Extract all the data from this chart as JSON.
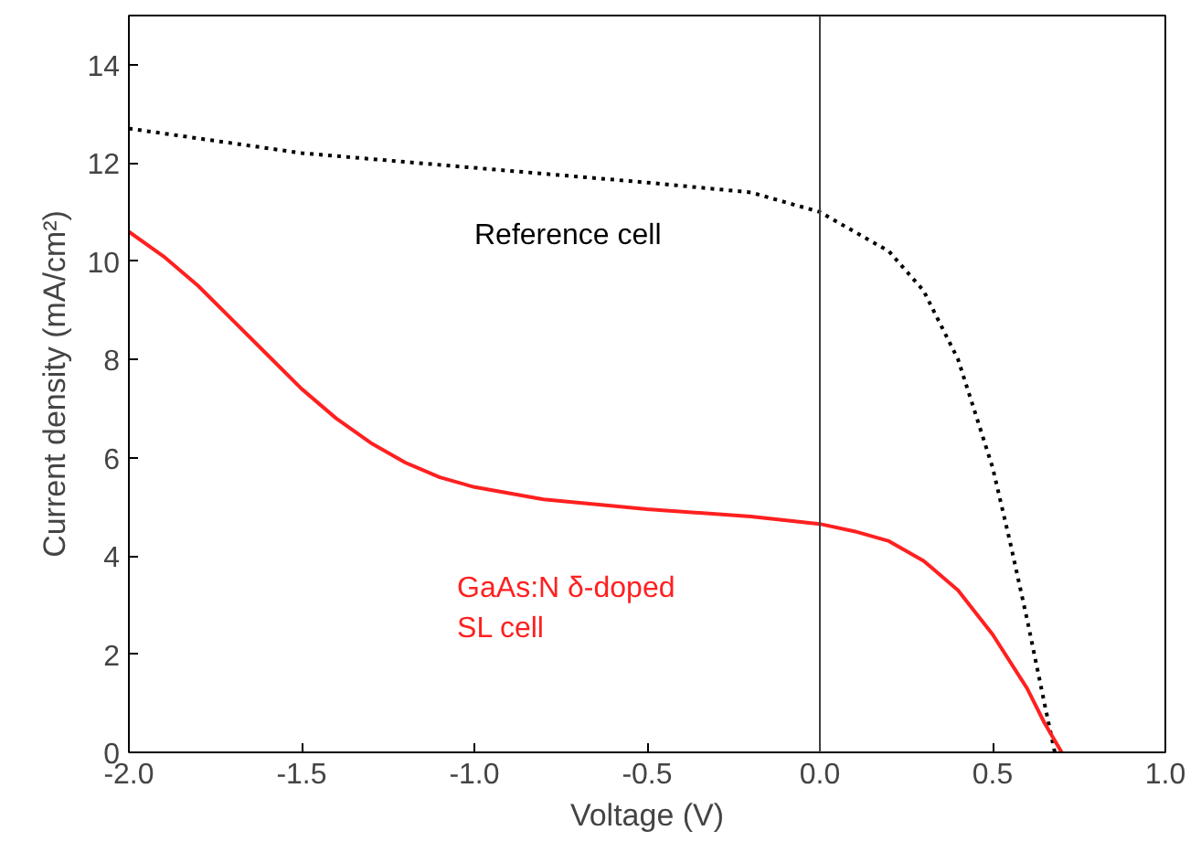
{
  "chart_data": {
    "type": "line",
    "xlabel": "Voltage (V)",
    "ylabel": "Current density (mA/cm²)",
    "xlim": [
      -2.0,
      1.0
    ],
    "ylim": [
      0,
      15
    ],
    "xticks": [
      {
        "value": -2.0,
        "label": "-2.0"
      },
      {
        "value": -1.5,
        "label": "-1.5"
      },
      {
        "value": -1.0,
        "label": "-1.0"
      },
      {
        "value": -0.5,
        "label": "-0.5"
      },
      {
        "value": 0.0,
        "label": "0.0"
      },
      {
        "value": 0.5,
        "label": "0.5"
      },
      {
        "value": 1.0,
        "label": "1.0"
      }
    ],
    "yticks": [
      0,
      2,
      4,
      6,
      8,
      10,
      12,
      14
    ],
    "grid": false,
    "ref_lines": [
      {
        "axis": "x",
        "value": 0,
        "color": "#404040"
      }
    ],
    "series": [
      {
        "name": "Reference cell",
        "color": "#000000",
        "line_style": "dotted",
        "x": [
          -2.0,
          -1.5,
          -1.0,
          -0.5,
          -0.2,
          0.0,
          0.2,
          0.3,
          0.4,
          0.5,
          0.55,
          0.6,
          0.65,
          0.68
        ],
        "values": [
          12.7,
          12.2,
          11.9,
          11.6,
          11.4,
          11.0,
          10.2,
          9.4,
          8.0,
          5.8,
          4.3,
          2.7,
          1.0,
          0
        ]
      },
      {
        "name": "GaAs:N δ-doped\nSL cell",
        "color": "#ff2020",
        "line_style": "solid",
        "x": [
          -2.0,
          -1.9,
          -1.8,
          -1.7,
          -1.6,
          -1.5,
          -1.4,
          -1.3,
          -1.2,
          -1.1,
          -1.0,
          -0.8,
          -0.5,
          -0.2,
          0.0,
          0.1,
          0.2,
          0.3,
          0.4,
          0.5,
          0.6,
          0.65,
          0.7
        ],
        "values": [
          10.6,
          10.1,
          9.5,
          8.8,
          8.1,
          7.4,
          6.8,
          6.3,
          5.9,
          5.6,
          5.4,
          5.15,
          4.95,
          4.8,
          4.65,
          4.5,
          4.3,
          3.9,
          3.3,
          2.4,
          1.3,
          0.6,
          0
        ]
      }
    ]
  }
}
